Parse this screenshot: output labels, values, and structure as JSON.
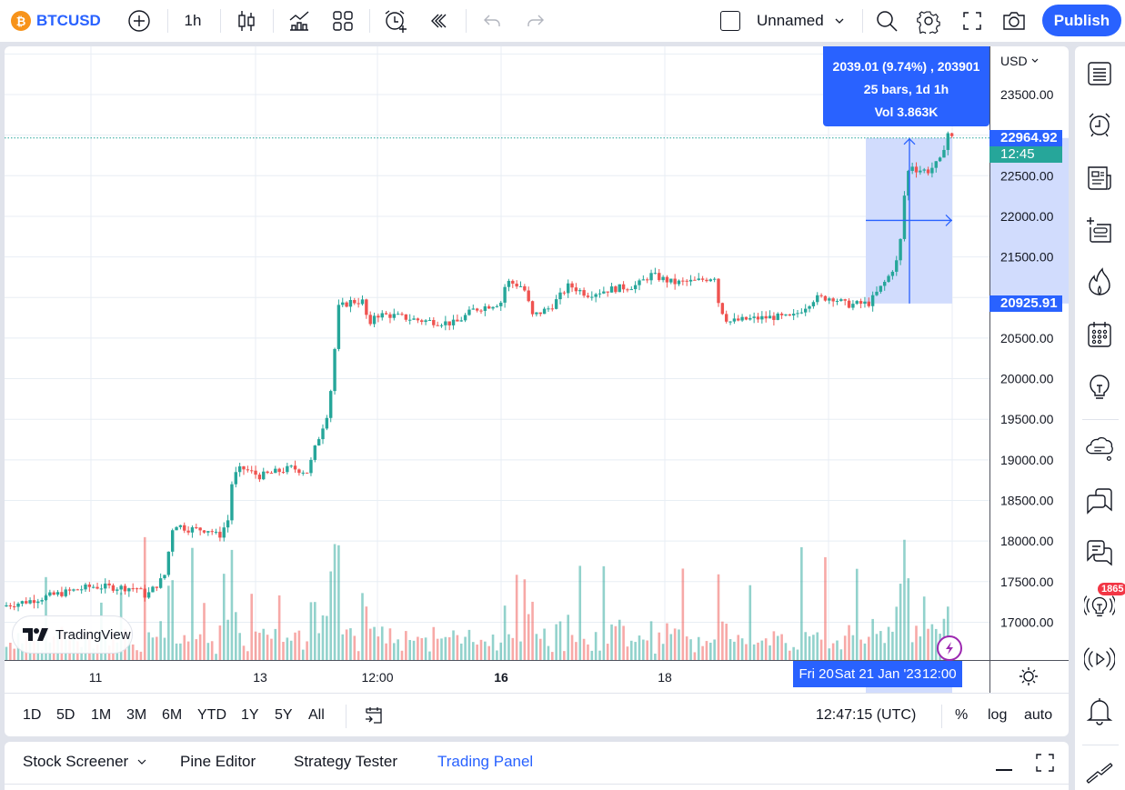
{
  "topbar": {
    "symbol": "BTCUSD",
    "symbol_logo": "₿",
    "interval": "1h",
    "layout_name": "Unnamed",
    "publish_label": "Publish",
    "icons": [
      "add-symbol-icon",
      "candles-style-icon",
      "indicators-icon",
      "layouts-icon",
      "alert-icon",
      "replay-icon",
      "undo-icon",
      "redo-icon",
      "search-icon",
      "settings-icon",
      "fullscreen-icon",
      "snapshot-icon"
    ]
  },
  "price_axis": {
    "currency": "USD",
    "ticks": [
      "23500.00",
      "22500.00",
      "22000.00",
      "21500.00",
      "20500.00",
      "20000.00",
      "19500.00",
      "19000.00",
      "18500.00",
      "18000.00",
      "17500.00",
      "17000.00"
    ],
    "last_price": "22964.92",
    "countdown": "12:45",
    "measure_low_price": "20925.91"
  },
  "time_axis": {
    "ticks": [
      {
        "label": "11",
        "x": 100,
        "bold": false
      },
      {
        "label": "13",
        "x": 281,
        "bold": false
      },
      {
        "label": "12:00",
        "x": 410,
        "bold": false
      },
      {
        "label": "16",
        "x": 546,
        "bold": true
      },
      {
        "label": "18",
        "x": 726,
        "bold": false
      }
    ],
    "measure_labels": [
      "Fri 20",
      "Sat 21 Jan '23",
      "12:00"
    ]
  },
  "measure_tooltip": {
    "line1": "2039.01 (9.74%) , 203901",
    "line2": "25 bars, 1d 1h",
    "line3": "Vol 3.863K"
  },
  "watermark": "TradingView",
  "range_bar": {
    "ranges": [
      "1D",
      "5D",
      "1M",
      "3M",
      "6M",
      "YTD",
      "1Y",
      "5Y",
      "All"
    ],
    "clock": "12:47:15 (UTC)",
    "percent": "%",
    "log": "log",
    "auto": "auto"
  },
  "bottom_panel": {
    "tabs": [
      "Stock Screener",
      "Pine Editor",
      "Strategy Tester",
      "Trading Panel"
    ],
    "active_tab": "Trading Panel"
  },
  "right_toolbar": {
    "icons": [
      "watchlist-icon",
      "alerts-icon",
      "news-icon",
      "add-list-icon",
      "hotlist-icon",
      "calendar-icon",
      "ideas-icon",
      "minds-icon",
      "chats-icon",
      "messages-icon",
      "streams-icon",
      "live-icon",
      "notifications-icon",
      "collapse-icon"
    ],
    "streams_badge": "1865"
  },
  "colors": {
    "up": "#26a69a",
    "down": "#ef5350",
    "accent": "#2962ff",
    "measure_fill": "#d1dcfd",
    "grid": "#e8eef4"
  },
  "chart_data": {
    "type": "candlestick",
    "title": "BTCUSD 1h",
    "ylabel": "USD",
    "ylim": [
      16650,
      24100
    ],
    "y_grid_step": 500,
    "x_labels": [
      "11",
      "13",
      "12:00",
      "16",
      "18",
      "Fri 20",
      "Sat 21 Jan '23",
      "12:00"
    ],
    "last_price": 22964.92,
    "price_path": [
      [
        0,
        17195
      ],
      [
        30,
        17260
      ],
      [
        60,
        17340
      ],
      [
        100,
        17440
      ],
      [
        150,
        17420
      ],
      [
        160,
        17320
      ],
      [
        180,
        17560
      ],
      [
        190,
        18220
      ],
      [
        205,
        18150
      ],
      [
        230,
        18140
      ],
      [
        240,
        18050
      ],
      [
        250,
        18260
      ],
      [
        255,
        18780
      ],
      [
        265,
        18900
      ],
      [
        285,
        18800
      ],
      [
        320,
        18900
      ],
      [
        338,
        18850
      ],
      [
        345,
        19120
      ],
      [
        360,
        19600
      ],
      [
        365,
        20030
      ],
      [
        371,
        20870
      ],
      [
        385,
        20950
      ],
      [
        400,
        20950
      ],
      [
        405,
        20560
      ],
      [
        410,
        20790
      ],
      [
        430,
        20780
      ],
      [
        460,
        20720
      ],
      [
        500,
        20680
      ],
      [
        520,
        20850
      ],
      [
        550,
        20940
      ],
      [
        556,
        21200
      ],
      [
        575,
        21130
      ],
      [
        585,
        20770
      ],
      [
        605,
        20880
      ],
      [
        625,
        21150
      ],
      [
        645,
        21040
      ],
      [
        670,
        21100
      ],
      [
        700,
        21150
      ],
      [
        715,
        21280
      ],
      [
        740,
        21180
      ],
      [
        765,
        21200
      ],
      [
        785,
        21260
      ],
      [
        790,
        20900
      ],
      [
        800,
        20700
      ],
      [
        820,
        20730
      ],
      [
        850,
        20760
      ],
      [
        870,
        20750
      ],
      [
        895,
        20990
      ],
      [
        915,
        21000
      ],
      [
        930,
        20910
      ],
      [
        955,
        20930
      ],
      [
        975,
        21230
      ],
      [
        988,
        21500
      ],
      [
        993,
        22200
      ],
      [
        1000,
        22680
      ],
      [
        1005,
        22580
      ],
      [
        1020,
        22560
      ],
      [
        1035,
        22700
      ],
      [
        1040,
        23050
      ],
      [
        1046,
        22964
      ]
    ],
    "measure": {
      "from_price": 20925.91,
      "to_price": 22964.92,
      "change": 2039.01,
      "change_pct": 9.74,
      "bars": 25,
      "span": "1d 1h",
      "volume": "3.863K"
    }
  }
}
